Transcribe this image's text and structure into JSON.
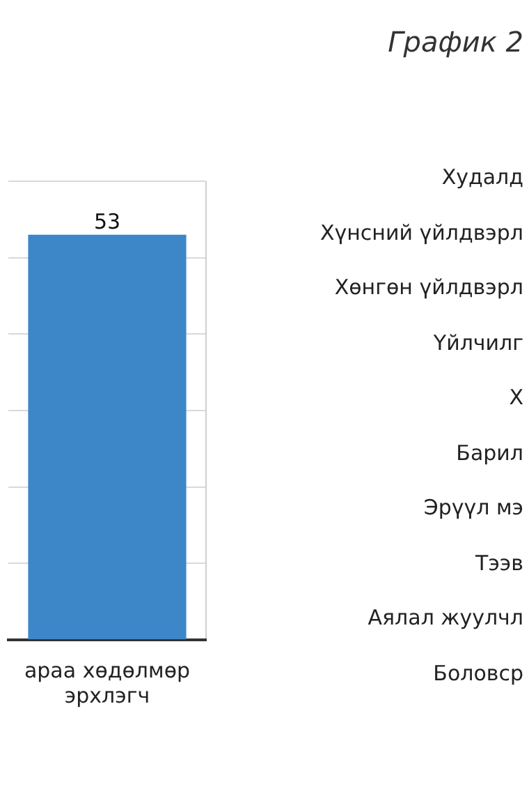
{
  "chart_data": [
    {
      "type": "bar",
      "categories": [
        "араа хөдөлмөр\nэрхлэгч"
      ],
      "values": [
        53
      ],
      "color": "#3d87c9",
      "ylim": [
        0,
        60
      ],
      "yticks": [
        {
          "value": 0,
          "label": null
        },
        {
          "value": 10,
          "label": null
        },
        {
          "value": 20,
          "label": null
        },
        {
          "value": 30,
          "label": null
        },
        {
          "value": 40,
          "label": null
        },
        {
          "value": 50,
          "label": null
        },
        {
          "value": 60,
          "label": null
        }
      ],
      "grid": true,
      "data_labels": true
    },
    {
      "type": "other",
      "title": "График 2",
      "annotations": [
        "Худалд",
        "Хүнсний үйлдвэрл",
        "Хөнгөн үйлдвэрл",
        "Үйлчилг",
        "Х",
        "Барил",
        "Эрүүл мэ",
        "Тээв",
        "Аялал жуулчл",
        "Боловср"
      ]
    }
  ]
}
